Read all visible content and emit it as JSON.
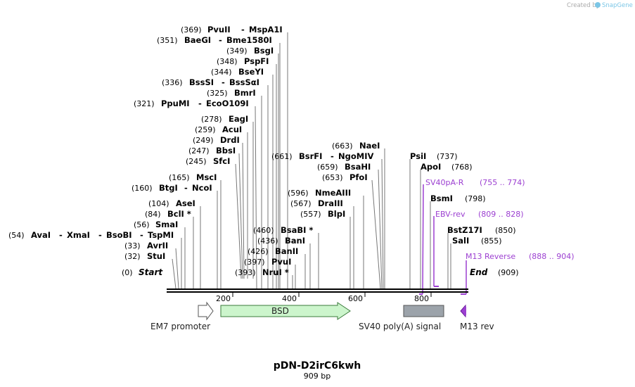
{
  "credit": {
    "created_by": "Created by",
    "brand": "SnapGene"
  },
  "title": "pDN-D2irC6kwh",
  "length_label": "909 bp",
  "sequence_length": 909,
  "axis_ticks": [
    "200",
    "400",
    "600",
    "800"
  ],
  "markers": {
    "start": {
      "pos": "(0)",
      "name": "Start",
      "bp": 0
    },
    "end": {
      "pos": "(909)",
      "name": "End",
      "bp": 909
    }
  },
  "sites": [
    {
      "pos": "(369)",
      "name": "PvuII",
      "name2": "MspA1I",
      "bp": 369
    },
    {
      "pos": "(351)",
      "name": "BaeGI",
      "name2": "Bme1580I",
      "bp": 351
    },
    {
      "pos": "(349)",
      "name": "BsgI",
      "bp": 349
    },
    {
      "pos": "(348)",
      "name": "PspFI",
      "bp": 348
    },
    {
      "pos": "(344)",
      "name": "BseYI",
      "bp": 344
    },
    {
      "pos": "(336)",
      "name": "BssSI",
      "name2": "BssSαI",
      "bp": 336
    },
    {
      "pos": "(325)",
      "name": "BmrI",
      "bp": 325
    },
    {
      "pos": "(321)",
      "name": "PpuMI",
      "name2": "EcoO109I",
      "bp": 321
    },
    {
      "pos": "(278)",
      "name": "EagI",
      "bp": 278
    },
    {
      "pos": "(259)",
      "name": "AcuI",
      "bp": 259
    },
    {
      "pos": "(249)",
      "name": "DrdI",
      "bp": 249
    },
    {
      "pos": "(247)",
      "name": "BbsI",
      "bp": 247
    },
    {
      "pos": "(245)",
      "name": "SfcI",
      "bp": 245
    },
    {
      "pos": "(165)",
      "name": "MscI",
      "bp": 165
    },
    {
      "pos": "(160)",
      "name": "BtgI",
      "name2": "NcoI",
      "bp": 160
    },
    {
      "pos": "(104)",
      "name": "AseI",
      "bp": 104
    },
    {
      "pos": "(84)",
      "name": "BclI *",
      "bp": 84
    },
    {
      "pos": "(56)",
      "name": "SmaI",
      "bp": 56
    },
    {
      "pos": "(54)",
      "name": "AvaI",
      "name2": "XmaI",
      "name3": "BsoBI",
      "name4": "TspMI",
      "bp": 54
    },
    {
      "pos": "(33)",
      "name": "AvrII",
      "bp": 33
    },
    {
      "pos": "(32)",
      "name": "StuI",
      "bp": 32
    },
    {
      "pos": "(663)",
      "name": "NaeI",
      "bp": 663
    },
    {
      "pos": "(661)",
      "name": "BsrFI",
      "name2": "NgoMIV",
      "bp": 661
    },
    {
      "pos": "(659)",
      "name": "BsaHI",
      "bp": 659
    },
    {
      "pos": "(653)",
      "name": "PfoI",
      "bp": 653
    },
    {
      "pos": "(596)",
      "name": "NmeAIII",
      "bp": 596
    },
    {
      "pos": "(567)",
      "name": "DraIII",
      "bp": 567
    },
    {
      "pos": "(557)",
      "name": "BlpI",
      "bp": 557
    },
    {
      "pos": "(460)",
      "name": "BsaBI *",
      "bp": 460
    },
    {
      "pos": "(436)",
      "name": "BanI",
      "bp": 436
    },
    {
      "pos": "(426)",
      "name": "BanII",
      "bp": 426
    },
    {
      "pos": "(397)",
      "name": "PvuI",
      "bp": 397
    },
    {
      "pos": "(393)",
      "name": "NruI *",
      "bp": 393
    },
    {
      "name": "PsiI",
      "pos": "(737)",
      "bp": 737
    },
    {
      "name": "ApoI",
      "pos": "(768)",
      "bp": 768
    },
    {
      "name": "BsmI",
      "pos": "(798)",
      "bp": 798
    },
    {
      "name": "BstZ17I",
      "pos": "(850)",
      "bp": 850
    },
    {
      "name": "SalI",
      "pos": "(855)",
      "bp": 855
    }
  ],
  "primers": [
    {
      "name": "SV40pA-R",
      "range": "(755 .. 774)",
      "start": 755,
      "end": 774,
      "color": "#9c3fd1"
    },
    {
      "name": "EBV-rev",
      "range": "(809 .. 828)",
      "start": 809,
      "end": 828,
      "color": "#9c3fd1"
    },
    {
      "name": "M13 Reverse",
      "range": "(888 .. 904)",
      "start": 888,
      "end": 904,
      "color": "#9c3fd1"
    }
  ],
  "features": [
    {
      "name": "EM7 promoter",
      "start": 0,
      "end": 48,
      "shape": "arrow",
      "color": "#ffffff"
    },
    {
      "name": "BSD",
      "start": 81,
      "end": 479,
      "shape": "arrow",
      "color": "#ccf5cc"
    },
    {
      "name": "SV40 poly(A) signal",
      "start": 722,
      "end": 843,
      "shape": "box",
      "color": "#9ca3aa"
    },
    {
      "name": "M13 rev",
      "start": 888,
      "end": 904,
      "shape": "arrow-left",
      "color": "#9c3fd1"
    }
  ]
}
